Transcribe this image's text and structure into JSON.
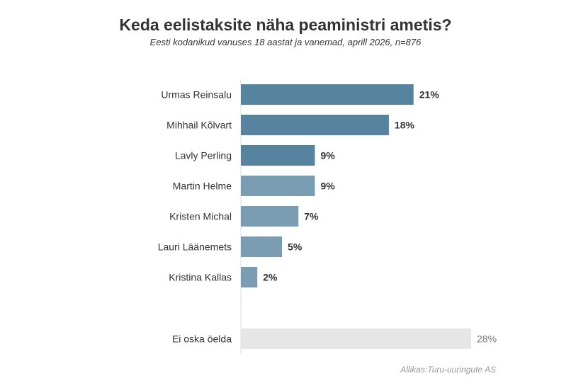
{
  "chart_data": {
    "type": "bar",
    "orientation": "horizontal",
    "title": "Keda eelistaksite näha peaministri ametis?",
    "subtitle": "Eesti kodanikud vanuses 18 aastat ja vanemad, aprill 2026, n=876",
    "source": "Allikas:Turu-uuringute AS",
    "categories": [
      "Urmas Reinsalu",
      "Mihhail Kõlvart",
      "Lavly Perling",
      "Martin Helme",
      "Kristen Michal",
      "Lauri Läänemets",
      "Kristina Kallas",
      "Ei oska öelda"
    ],
    "values": [
      21,
      18,
      9,
      9,
      7,
      5,
      2,
      28
    ],
    "value_labels": [
      "21%",
      "18%",
      "9%",
      "9%",
      "7%",
      "5%",
      "2%",
      "28%"
    ],
    "bar_colors": [
      "#56849f",
      "#56849f",
      "#56849f",
      "#7a9db3",
      "#7a9db3",
      "#7a9db3",
      "#7a9db3",
      "#e6e6e6"
    ],
    "label_colors": [
      "#333333",
      "#333333",
      "#333333",
      "#333333",
      "#333333",
      "#333333",
      "#333333",
      "#777777"
    ],
    "xlim": [
      0,
      28
    ],
    "grid": false,
    "legend": "none"
  }
}
